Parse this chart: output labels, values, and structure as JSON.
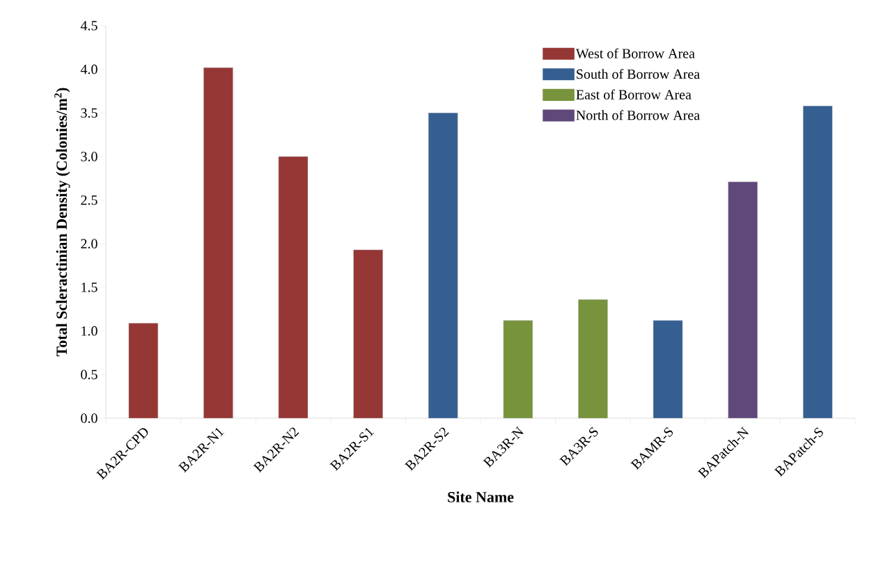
{
  "chart_data": {
    "type": "bar",
    "xlabel": "**Site Name**",
    "ylabel": "**Total Scleractinian Density (Colonies/m$^{2}$)**",
    "categories": [
      "BA2R-CPD",
      "BA2R-N1",
      "BA2R-N2",
      "BA2R-S1",
      "BA2R-S2",
      "BA3R-N",
      "BA3R-S",
      "BAMR-S",
      "BAPatch-N",
      "BAPatch-S"
    ],
    "series": [
      {
        "name": "West of Borrow Area",
        "color": "#953735",
        "values": [
          1.09,
          4.02,
          3.0,
          1.93,
          null,
          null,
          null,
          null,
          null,
          null
        ]
      },
      {
        "name": "South of Borrow Area",
        "color": "#355f91",
        "values": [
          null,
          null,
          null,
          null,
          3.5,
          null,
          null,
          1.12,
          null,
          3.58
        ]
      },
      {
        "name": "East of Borrow Area",
        "color": "#77933c",
        "values": [
          null,
          null,
          null,
          null,
          null,
          1.12,
          1.36,
          null,
          null,
          null
        ]
      },
      {
        "name": "North of Borrow Area",
        "color": "#5f497a",
        "values": [
          null,
          null,
          null,
          null,
          null,
          null,
          null,
          null,
          2.71,
          null
        ]
      }
    ],
    "ylim": [
      0,
      4.5
    ],
    "yticks": [
      {
        "value": 0,
        "label": "0.0"
      },
      0.5,
      {
        "value": 1,
        "label": "1.0"
      },
      1.5,
      {
        "value": 2,
        "label": "2.0"
      },
      2.5,
      {
        "value": 3,
        "label": "3.0"
      },
      3.5,
      {
        "value": 4,
        "label": "4.0"
      },
      4.5
    ],
    "legend": "top right",
    "grid": false
  }
}
